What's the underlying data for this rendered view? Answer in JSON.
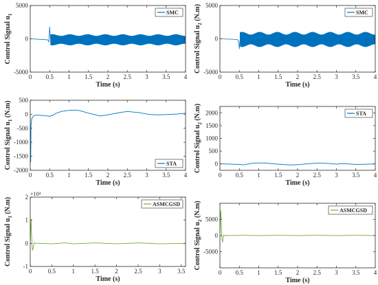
{
  "chart_data": [
    {
      "type": "line",
      "panel": "SMC u1",
      "xlabel": "Time (s)",
      "ylabel": "Control Signal u",
      "ylabel_sub": "1",
      "ylabel_tail": "",
      "xlim": [
        0,
        4
      ],
      "ylim": [
        -5000,
        5000
      ],
      "xticks": [
        "0",
        "0.5",
        "1",
        "1.5",
        "2",
        "2.5",
        "3",
        "3.5",
        "4"
      ],
      "yticks": [
        "-5000",
        "0",
        "5000"
      ],
      "ytick_values": [
        -5000,
        0,
        5000
      ],
      "exponent": "",
      "legend": "top-right",
      "series": [
        {
          "name": "SMC",
          "color": "#0072BD",
          "signal": "chattering",
          "x": [
            0,
            0.45,
            0.48,
            0.5,
            0.52,
            4
          ],
          "y": [
            0,
            -150,
            -500,
            1800,
            0,
            0
          ],
          "band_start": 0.52,
          "band_center": -150,
          "band_amplitude": 680,
          "band_ripple": 120
        }
      ]
    },
    {
      "type": "line",
      "panel": "SMC u2",
      "xlabel": "Time (s)",
      "ylabel": "Control Signal u",
      "ylabel_sub": "2",
      "ylabel_tail": " (N.m)",
      "xlim": [
        0,
        4
      ],
      "ylim": [
        -5000,
        5000
      ],
      "xticks": [
        "0",
        "0.5",
        "1",
        "1.5",
        "2",
        "2.5",
        "3",
        "3.5",
        "4"
      ],
      "yticks": [
        "-5000",
        "0",
        "5000"
      ],
      "ytick_values": [
        -5000,
        0,
        5000
      ],
      "exponent": "",
      "legend": "top-right",
      "series": [
        {
          "name": "SMC",
          "color": "#0072BD",
          "signal": "chattering",
          "x": [
            0,
            0.45,
            0.48,
            0.5,
            0.52,
            4
          ],
          "y": [
            0,
            -100,
            -400,
            -1500,
            0,
            0
          ],
          "band_start": 0.52,
          "band_center": -100,
          "band_amplitude": 900,
          "band_ripple": 200
        }
      ]
    },
    {
      "type": "line",
      "panel": "STA u1",
      "xlabel": "Time (s)",
      "ylabel": "Control Signal u",
      "ylabel_sub": "1",
      "ylabel_tail": " (N.m)",
      "xlim": [
        0,
        4
      ],
      "ylim": [
        -2000,
        500
      ],
      "xticks": [
        "0",
        "0.5",
        "1",
        "1.5",
        "2",
        "2.5",
        "3",
        "3.5",
        "4"
      ],
      "yticks": [
        "-2000",
        "-1500",
        "-1000",
        "-500",
        "0",
        "500"
      ],
      "ytick_values": [
        -2000,
        -1500,
        -1000,
        -500,
        0,
        500
      ],
      "exponent": "",
      "legend": "bottom-right",
      "series": [
        {
          "name": "STA",
          "color": "#0072BD",
          "signal": "line",
          "x": [
            0,
            0.005,
            0.012,
            0.02,
            0.04,
            0.08,
            0.15,
            0.3,
            0.5,
            0.6,
            0.65,
            0.7,
            0.8,
            1.0,
            1.2,
            1.3,
            1.5,
            1.8,
            2.0,
            2.3,
            2.5,
            2.8,
            3.0,
            3.1,
            3.3,
            3.5,
            3.8,
            4.0
          ],
          "y": [
            0,
            -1000,
            -1700,
            -400,
            -150,
            -60,
            -30,
            -40,
            -70,
            -30,
            30,
            50,
            100,
            140,
            150,
            120,
            40,
            -60,
            -20,
            60,
            100,
            60,
            10,
            -10,
            -20,
            -10,
            10,
            40
          ]
        }
      ]
    },
    {
      "type": "line",
      "panel": "STA u2",
      "xlabel": "Time (s)",
      "ylabel": "Control Signal u",
      "ylabel_sub": "2",
      "ylabel_tail": " (N.m)",
      "xlim": [
        0,
        4
      ],
      "ylim": [
        -250,
        2250
      ],
      "xticks": [
        "0",
        "0.5",
        "1",
        "1.5",
        "2",
        "2.5",
        "3",
        "3.5",
        "4"
      ],
      "yticks": [
        "0",
        "500",
        "1000",
        "1500",
        "2000"
      ],
      "ytick_values": [
        0,
        500,
        1000,
        1500,
        2000
      ],
      "exponent": "",
      "legend": "top-right",
      "series": [
        {
          "name": "STA",
          "color": "#0072BD",
          "signal": "line",
          "x": [
            0,
            0.1,
            0.3,
            0.5,
            0.6,
            0.7,
            0.8,
            1.0,
            1.2,
            1.5,
            1.8,
            2.0,
            2.3,
            2.5,
            2.8,
            3.0,
            3.1,
            3.3,
            3.5,
            3.8,
            4.0
          ],
          "y": [
            0,
            0,
            -10,
            -20,
            -40,
            -10,
            20,
            40,
            30,
            -10,
            -40,
            -30,
            10,
            30,
            20,
            -10,
            10,
            0,
            -20,
            -10,
            0
          ]
        }
      ]
    },
    {
      "type": "line",
      "panel": "ASMCGSD u1",
      "xlabel": "Time (s)",
      "ylabel": "Control Signal u",
      "ylabel_sub": "1",
      "ylabel_tail": " (N.m)",
      "xlim": [
        0,
        3.6
      ],
      "ylim": [
        -10000,
        20000
      ],
      "xticks": [
        "0",
        "0.5",
        "1",
        "1.5",
        "2",
        "2.5",
        "3",
        "3.5"
      ],
      "yticks": [
        "-1",
        "0",
        "1",
        "2"
      ],
      "ytick_values": [
        -10000,
        0,
        10000,
        20000
      ],
      "exponent": "×10⁴",
      "legend": "top-right",
      "series": [
        {
          "name": "ASMCGSD",
          "color": "#77AC30",
          "signal": "line",
          "x": [
            0,
            0.01,
            0.02,
            0.03,
            0.05,
            0.07,
            0.09,
            0.12,
            0.2,
            0.5,
            0.8,
            1.0,
            1.5,
            2.0,
            2.5,
            3.0,
            3.6
          ],
          "y": [
            0,
            6000,
            10500,
            4000,
            -3000,
            -2000,
            300,
            0,
            0,
            -200,
            200,
            -200,
            200,
            -200,
            200,
            -200,
            0
          ]
        }
      ]
    },
    {
      "type": "line",
      "panel": "ASMCGSD u2",
      "xlabel": "Time (s)",
      "ylabel": "Control Signal u",
      "ylabel_sub": "2",
      "ylabel_tail": " (N.m)",
      "xlim": [
        0,
        4
      ],
      "ylim": [
        -10000,
        10000
      ],
      "xticks": [
        "0",
        "0.5",
        "1",
        "1.5",
        "2",
        "2.5",
        "3",
        "3.5",
        "4"
      ],
      "yticks": [
        "-5000",
        "0",
        "5000"
      ],
      "ytick_values": [
        -5000,
        0,
        5000
      ],
      "exponent": "",
      "legend": "top-right",
      "series": [
        {
          "name": "ASMCGSD",
          "color": "#77AC30",
          "signal": "line",
          "x": [
            0,
            0.01,
            0.02,
            0.03,
            0.05,
            0.07,
            0.09,
            0.12,
            0.2,
            0.6,
            1.0,
            1.5,
            2.0,
            2.5,
            3.0,
            3.5,
            4.0
          ],
          "y": [
            0,
            5000,
            7800,
            5500,
            -1000,
            -2000,
            200,
            0,
            0,
            80,
            0,
            80,
            0,
            80,
            0,
            80,
            0
          ]
        }
      ]
    }
  ]
}
